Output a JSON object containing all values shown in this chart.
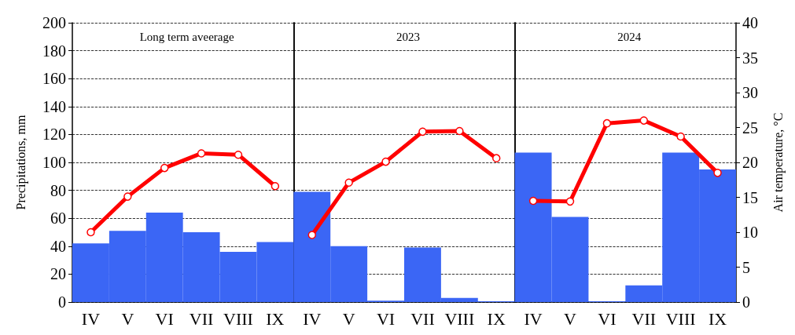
{
  "chart_data": {
    "type": "bar",
    "ylabel": "Precipitations, mm",
    "y2label": "Air temperature, °C",
    "annotations": [
      "Long term aveerage",
      "2023",
      "2024"
    ],
    "categories": [
      "IV",
      "V",
      "VI",
      "VII",
      "VIII",
      "IX",
      "IV",
      "V",
      "VI",
      "VII",
      "VIII",
      "IX",
      "IV",
      "V",
      "VI",
      "VII",
      "VIII",
      "IX"
    ],
    "series": [
      {
        "color": "#3b66f5",
        "values": [
          42,
          51,
          64,
          50,
          36,
          43,
          79,
          40,
          1,
          39,
          3,
          0.5,
          107,
          61,
          0.5,
          12,
          107,
          95
        ]
      },
      {
        "type": "line",
        "axis": "y2",
        "color": "#ff0000",
        "values": [
          10.0,
          15.1,
          19.2,
          21.3,
          21.1,
          16.6,
          null,
          null,
          null,
          null,
          null,
          null,
          null,
          null,
          null,
          null,
          null,
          null
        ]
      },
      {
        "type": "line",
        "axis": "y2",
        "color": "#ff0000",
        "values": [
          null,
          null,
          null,
          null,
          null,
          null,
          9.6,
          17.1,
          20.1,
          24.4,
          24.5,
          20.6,
          null,
          null,
          null,
          null,
          null,
          null
        ]
      },
      {
        "type": "line",
        "axis": "y2",
        "color": "#ff0000",
        "values": [
          null,
          null,
          null,
          null,
          null,
          null,
          null,
          null,
          null,
          null,
          null,
          null,
          14.5,
          14.4,
          25.6,
          26.0,
          23.7,
          18.5
        ]
      }
    ],
    "ylim": [
      0,
      200
    ],
    "yticks": [
      0,
      20,
      40,
      60,
      80,
      100,
      120,
      140,
      160,
      180,
      200
    ],
    "y2lim": [
      0,
      40
    ],
    "y2ticks": [
      0,
      5,
      10,
      15,
      20,
      25,
      30,
      35,
      40
    ],
    "grid": "y",
    "marker": "circle"
  }
}
